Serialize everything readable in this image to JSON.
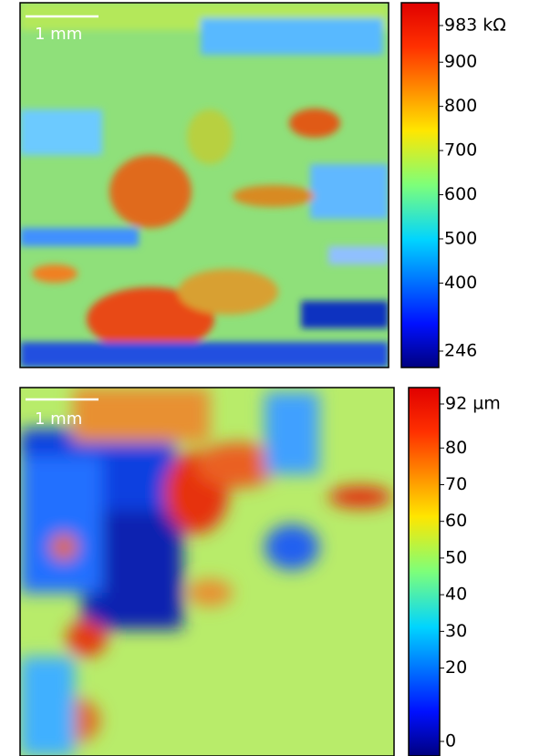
{
  "chart_data": [
    {
      "type": "heatmap",
      "colormap": "jet",
      "scale_bar_label": "1 mm",
      "clim": [
        246,
        983
      ],
      "cticks": [
        {
          "value": 983,
          "label": "983 kΩ"
        },
        900,
        800,
        700,
        600,
        500,
        400,
        246
      ]
    },
    {
      "type": "heatmap",
      "colormap": "jet",
      "scale_bar_label": "1 mm",
      "clim": [
        0,
        92
      ],
      "cticks": [
        {
          "value": 92,
          "label": "92 µm"
        },
        80,
        70,
        60,
        50,
        40,
        30,
        20,
        0
      ]
    }
  ]
}
